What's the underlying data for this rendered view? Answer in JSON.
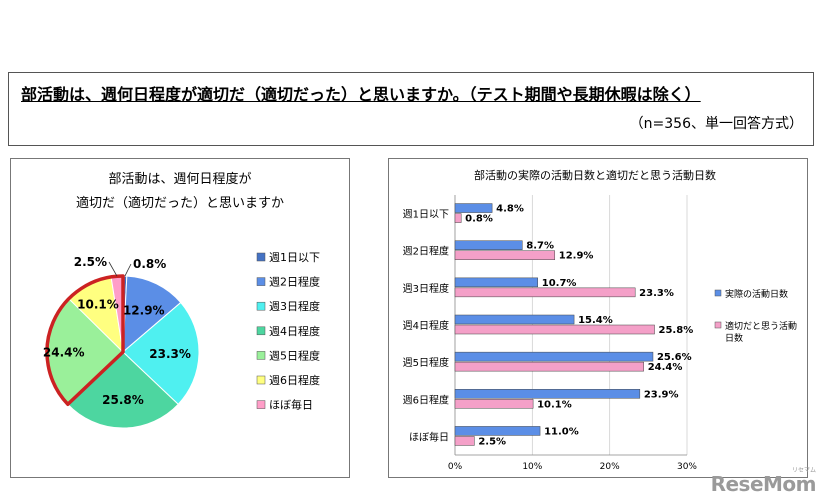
{
  "header": {
    "question": "部活動は、週何日程度が適切だ（適切だった）と思いますか。（テスト期間や長期休暇は除く）",
    "note": "（n=356、単一回答方式）"
  },
  "watermark": {
    "brand": "ReseMom",
    "sub": "リセマム"
  },
  "colors": {
    "series_actual": "#5b8ee6",
    "series_ideal": "#f4a0c8",
    "highlight": "#cc2222"
  },
  "chart_data": [
    {
      "type": "pie",
      "title": "部活動は、週何日程度が\n適切だ（適切だった）と思いますか",
      "categories": [
        "週1日以下",
        "週2日程度",
        "週3日程度",
        "週4日程度",
        "週5日程度",
        "週6日程度",
        "ほぼ毎日"
      ],
      "values": [
        0.8,
        12.9,
        23.3,
        25.8,
        24.4,
        10.1,
        2.5
      ],
      "value_labels": [
        "0.8%",
        "12.9%",
        "23.3%",
        "25.8%",
        "24.4%",
        "10.1%",
        "2.5%"
      ],
      "colors": [
        "#4472c4",
        "#5b8ee6",
        "#4ff0f0",
        "#4dd6a0",
        "#9af09a",
        "#ffff80",
        "#ff9ec8"
      ],
      "highlighted": [
        "週5日程度",
        "週6日程度",
        "ほぼ毎日"
      ],
      "legend_position": "right"
    },
    {
      "type": "bar",
      "orientation": "horizontal",
      "title": "部活動の実際の活動日数と適切だと思う活動日数",
      "categories": [
        "週1日以下",
        "週2日程度",
        "週3日程度",
        "週4日程度",
        "週5日程度",
        "週6日程度",
        "ほぼ毎日"
      ],
      "series": [
        {
          "name": "実際の活動日数",
          "values": [
            4.8,
            8.7,
            10.7,
            15.4,
            25.6,
            23.9,
            11.0
          ],
          "labels": [
            "4.8%",
            "8.7%",
            "10.7%",
            "15.4%",
            "25.6%",
            "23.9%",
            "11.0%"
          ]
        },
        {
          "name": "適切だと思う活動日数",
          "values": [
            0.8,
            12.9,
            23.3,
            25.8,
            24.4,
            10.1,
            2.5
          ],
          "labels": [
            "0.8%",
            "12.9%",
            "23.3%",
            "25.8%",
            "24.4%",
            "10.1%",
            "2.5%"
          ]
        }
      ],
      "xlim": [
        0,
        30
      ],
      "xticks": [
        "0%",
        "10%",
        "20%",
        "30%"
      ],
      "grid": true,
      "legend_position": "right"
    }
  ]
}
